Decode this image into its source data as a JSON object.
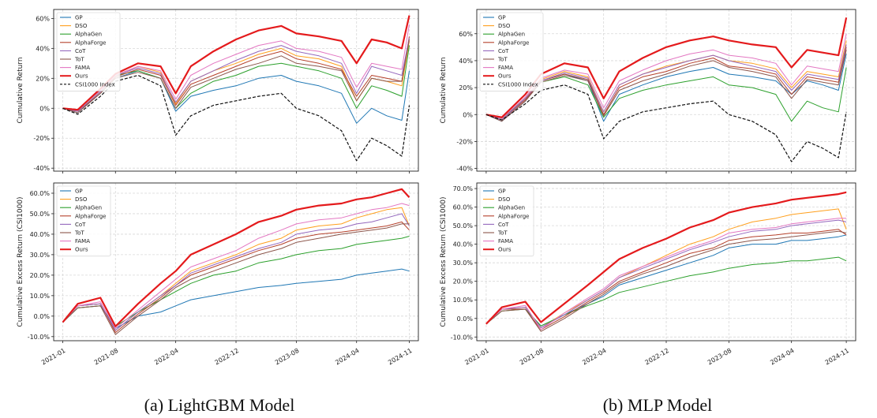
{
  "colors": {
    "GP": "#1f77b4",
    "DSO": "#ff9f1c",
    "AlphaGen": "#2ca02c",
    "AlphaForge": "#b5402a",
    "CoT": "#9467bd",
    "ToT": "#8c564b",
    "FAMA": "#e377c2",
    "Ours": "#e41a1c",
    "CSI1000 Index": "#111111"
  },
  "x_ticks": [
    "2021-01",
    "2021-08",
    "2022-04",
    "2022-12",
    "2023-08",
    "2024-04",
    "2024-11"
  ],
  "captions": [
    "(a) LightGBM Model",
    "(b) MLP Model"
  ],
  "chart_data": [
    {
      "type": "line",
      "panel": "a-top",
      "xlabel": "",
      "ylabel": "Cumulative Return",
      "ylim": [
        -42,
        66
      ],
      "yticks": [
        -40,
        -20,
        0,
        20,
        40,
        60
      ],
      "ytick_labels": [
        "-40%",
        "-20%",
        "0%",
        "20%",
        "40%",
        "60%"
      ],
      "legend": "top-left",
      "grid": true,
      "x": [
        "2021-01",
        "2021-03",
        "2021-06",
        "2021-08",
        "2021-11",
        "2022-02",
        "2022-04",
        "2022-06",
        "2022-09",
        "2022-12",
        "2023-03",
        "2023-06",
        "2023-08",
        "2023-11",
        "2024-02",
        "2024-04",
        "2024-06",
        "2024-08",
        "2024-10",
        "2024-11"
      ],
      "series": [
        {
          "name": "GP",
          "values": [
            0,
            -3,
            10,
            20,
            25,
            20,
            -2,
            8,
            12,
            15,
            20,
            22,
            18,
            15,
            10,
            -10,
            0,
            -5,
            -8,
            25
          ]
        },
        {
          "name": "DSO",
          "values": [
            0,
            -2,
            11,
            22,
            28,
            24,
            3,
            18,
            25,
            30,
            36,
            40,
            35,
            33,
            28,
            5,
            20,
            18,
            15,
            45
          ]
        },
        {
          "name": "AlphaGen",
          "values": [
            0,
            -1,
            12,
            22,
            25,
            20,
            0,
            10,
            18,
            22,
            28,
            30,
            28,
            25,
            20,
            0,
            15,
            12,
            8,
            42
          ]
        },
        {
          "name": "AlphaForge",
          "values": [
            0,
            -2,
            10,
            21,
            26,
            22,
            2,
            16,
            22,
            28,
            34,
            38,
            33,
            30,
            26,
            8,
            22,
            20,
            18,
            48
          ]
        },
        {
          "name": "CoT",
          "values": [
            0,
            -2,
            11,
            22,
            27,
            23,
            4,
            18,
            25,
            32,
            38,
            42,
            38,
            35,
            30,
            10,
            28,
            25,
            22,
            47
          ]
        },
        {
          "name": "ToT",
          "values": [
            0,
            -3,
            10,
            20,
            24,
            20,
            0,
            14,
            20,
            26,
            30,
            35,
            30,
            28,
            25,
            5,
            20,
            18,
            18,
            46
          ]
        },
        {
          "name": "FAMA",
          "values": [
            0,
            -1,
            12,
            22,
            28,
            25,
            6,
            22,
            30,
            36,
            42,
            45,
            40,
            38,
            34,
            14,
            30,
            28,
            26,
            56
          ]
        },
        {
          "name": "Ours",
          "values": [
            0,
            -1,
            13,
            23,
            30,
            28,
            10,
            28,
            38,
            46,
            52,
            55,
            50,
            48,
            45,
            30,
            46,
            44,
            40,
            62
          ]
        },
        {
          "name": "CSI1000 Index",
          "values": [
            0,
            -4,
            8,
            18,
            22,
            15,
            -18,
            -5,
            2,
            5,
            8,
            10,
            0,
            -5,
            -15,
            -35,
            -20,
            -25,
            -32,
            2
          ]
        }
      ]
    },
    {
      "type": "line",
      "panel": "a-bottom",
      "xlabel": "",
      "ylabel": "Cumulative Excess Return (CSI1000)",
      "ylim": [
        -12,
        65
      ],
      "yticks": [
        -10,
        0,
        10,
        20,
        30,
        40,
        50,
        60
      ],
      "ytick_labels": [
        "-10.0%",
        "0.0%",
        "10.0%",
        "20.0%",
        "30.0%",
        "40.0%",
        "50.0%",
        "60.0%"
      ],
      "legend": "top-left",
      "grid": true,
      "x": [
        "2021-01",
        "2021-03",
        "2021-06",
        "2021-08",
        "2021-11",
        "2022-02",
        "2022-04",
        "2022-06",
        "2022-09",
        "2022-12",
        "2023-03",
        "2023-06",
        "2023-08",
        "2023-11",
        "2024-02",
        "2024-04",
        "2024-06",
        "2024-08",
        "2024-10",
        "2024-11"
      ],
      "series": [
        {
          "name": "GP",
          "values": [
            -3,
            4,
            5,
            -6,
            0,
            2,
            5,
            8,
            10,
            12,
            14,
            15,
            16,
            17,
            18,
            20,
            21,
            22,
            23,
            22
          ]
        },
        {
          "name": "DSO",
          "values": [
            -3,
            5,
            6,
            -7,
            2,
            10,
            16,
            22,
            26,
            30,
            35,
            38,
            42,
            44,
            45,
            48,
            50,
            52,
            53,
            44
          ]
        },
        {
          "name": "AlphaGen",
          "values": [
            -3,
            4,
            5,
            -5,
            2,
            8,
            12,
            16,
            20,
            22,
            26,
            28,
            30,
            32,
            33,
            35,
            36,
            37,
            38,
            39
          ]
        },
        {
          "name": "AlphaForge",
          "values": [
            -3,
            5,
            6,
            -8,
            1,
            9,
            15,
            20,
            24,
            28,
            32,
            35,
            38,
            40,
            41,
            42,
            43,
            44,
            46,
            42
          ]
        },
        {
          "name": "CoT",
          "values": [
            -3,
            5,
            6,
            -7,
            2,
            10,
            15,
            21,
            25,
            29,
            33,
            36,
            40,
            42,
            43,
            45,
            46,
            48,
            50,
            44
          ]
        },
        {
          "name": "ToT",
          "values": [
            -3,
            4,
            5,
            -9,
            0,
            8,
            14,
            18,
            22,
            26,
            30,
            33,
            36,
            38,
            40,
            41,
            42,
            43,
            45,
            45
          ]
        },
        {
          "name": "FAMA",
          "values": [
            -3,
            5,
            7,
            -6,
            3,
            12,
            18,
            24,
            28,
            32,
            38,
            42,
            45,
            47,
            48,
            50,
            52,
            53,
            55,
            54
          ]
        },
        {
          "name": "Ours",
          "values": [
            -3,
            6,
            9,
            -5,
            6,
            16,
            22,
            30,
            35,
            40,
            46,
            49,
            52,
            54,
            55,
            57,
            58,
            60,
            62,
            58
          ]
        }
      ]
    },
    {
      "type": "line",
      "panel": "b-top",
      "xlabel": "",
      "ylabel": "Cumulative Return",
      "ylim": [
        -42,
        78
      ],
      "yticks": [
        -40,
        -20,
        0,
        20,
        40,
        60
      ],
      "ytick_labels": [
        "-40%",
        "-20%",
        "0%",
        "20%",
        "40%",
        "60%"
      ],
      "legend": "top-left",
      "grid": true,
      "x": [
        "2021-01",
        "2021-03",
        "2021-06",
        "2021-08",
        "2021-11",
        "2022-02",
        "2022-04",
        "2022-06",
        "2022-09",
        "2022-12",
        "2023-03",
        "2023-06",
        "2023-08",
        "2023-11",
        "2024-02",
        "2024-04",
        "2024-06",
        "2024-08",
        "2024-10",
        "2024-11"
      ],
      "series": [
        {
          "name": "GP",
          "values": [
            0,
            -5,
            10,
            25,
            30,
            25,
            -5,
            15,
            22,
            28,
            32,
            35,
            30,
            28,
            25,
            15,
            25,
            22,
            18,
            45
          ]
        },
        {
          "name": "DSO",
          "values": [
            0,
            -4,
            12,
            26,
            32,
            28,
            2,
            22,
            30,
            36,
            40,
            44,
            40,
            38,
            34,
            20,
            32,
            30,
            28,
            55
          ]
        },
        {
          "name": "AlphaGen",
          "values": [
            0,
            -3,
            12,
            24,
            28,
            22,
            -2,
            12,
            18,
            22,
            25,
            28,
            22,
            20,
            15,
            -5,
            10,
            5,
            2,
            35
          ]
        },
        {
          "name": "AlphaForge",
          "values": [
            0,
            -4,
            11,
            25,
            30,
            26,
            0,
            20,
            28,
            32,
            38,
            42,
            36,
            34,
            30,
            15,
            28,
            26,
            24,
            50
          ]
        },
        {
          "name": "CoT",
          "values": [
            0,
            -4,
            12,
            25,
            31,
            27,
            2,
            22,
            30,
            35,
            40,
            44,
            40,
            36,
            32,
            18,
            30,
            28,
            26,
            52
          ]
        },
        {
          "name": "ToT",
          "values": [
            0,
            -5,
            10,
            24,
            29,
            25,
            -1,
            18,
            25,
            30,
            36,
            40,
            35,
            32,
            28,
            12,
            26,
            24,
            22,
            48
          ]
        },
        {
          "name": "FAMA",
          "values": [
            0,
            -3,
            13,
            27,
            33,
            30,
            5,
            25,
            33,
            40,
            45,
            48,
            44,
            42,
            38,
            22,
            36,
            34,
            32,
            60
          ]
        },
        {
          "name": "Ours",
          "values": [
            0,
            -2,
            15,
            30,
            38,
            35,
            12,
            32,
            42,
            50,
            55,
            58,
            55,
            52,
            50,
            35,
            48,
            46,
            44,
            72
          ]
        },
        {
          "name": "CSI1000 Index",
          "values": [
            0,
            -4,
            8,
            18,
            22,
            15,
            -18,
            -5,
            2,
            5,
            8,
            10,
            0,
            -5,
            -15,
            -35,
            -20,
            -25,
            -32,
            2
          ]
        }
      ]
    },
    {
      "type": "line",
      "panel": "b-bottom",
      "xlabel": "",
      "ylabel": "Cumulative Excess Return (CSI1000)",
      "ylim": [
        -12,
        73
      ],
      "yticks": [
        -10,
        0,
        10,
        20,
        30,
        40,
        50,
        60,
        70
      ],
      "ytick_labels": [
        "-10.0%",
        "0.0%",
        "10.0%",
        "20.0%",
        "30.0%",
        "40.0%",
        "50.0%",
        "60.0%",
        "70.0%"
      ],
      "legend": "top-left",
      "grid": true,
      "x": [
        "2021-01",
        "2021-03",
        "2021-06",
        "2021-08",
        "2021-11",
        "2022-02",
        "2022-04",
        "2022-06",
        "2022-09",
        "2022-12",
        "2023-03",
        "2023-06",
        "2023-08",
        "2023-11",
        "2024-02",
        "2024-04",
        "2024-06",
        "2024-08",
        "2024-10",
        "2024-11"
      ],
      "series": [
        {
          "name": "GP",
          "values": [
            -3,
            5,
            5,
            -4,
            2,
            8,
            12,
            18,
            22,
            26,
            30,
            34,
            38,
            40,
            40,
            42,
            42,
            43,
            44,
            45
          ]
        },
        {
          "name": "DSO",
          "values": [
            -3,
            5,
            6,
            -5,
            3,
            10,
            15,
            22,
            28,
            34,
            40,
            44,
            48,
            52,
            54,
            56,
            57,
            58,
            59,
            48
          ]
        },
        {
          "name": "AlphaGen",
          "values": [
            -3,
            4,
            5,
            -4,
            2,
            7,
            10,
            14,
            17,
            20,
            23,
            25,
            27,
            29,
            30,
            31,
            31,
            32,
            33,
            31
          ]
        },
        {
          "name": "AlphaForge",
          "values": [
            -3,
            5,
            5,
            -6,
            1,
            9,
            14,
            20,
            25,
            30,
            35,
            38,
            42,
            44,
            45,
            46,
            46,
            47,
            48,
            45
          ]
        },
        {
          "name": "CoT",
          "values": [
            -3,
            5,
            6,
            -5,
            2,
            10,
            15,
            22,
            27,
            32,
            37,
            41,
            44,
            47,
            48,
            50,
            51,
            52,
            53,
            52
          ]
        },
        {
          "name": "ToT",
          "values": [
            -3,
            4,
            5,
            -7,
            0,
            8,
            13,
            19,
            24,
            28,
            33,
            37,
            40,
            42,
            43,
            44,
            45,
            46,
            47,
            46
          ]
        },
        {
          "name": "FAMA",
          "values": [
            -3,
            5,
            7,
            -6,
            3,
            11,
            16,
            23,
            28,
            33,
            38,
            42,
            46,
            48,
            49,
            51,
            52,
            53,
            54,
            54
          ]
        },
        {
          "name": "Ours",
          "values": [
            -3,
            6,
            9,
            -2,
            8,
            18,
            25,
            32,
            38,
            43,
            49,
            53,
            57,
            60,
            62,
            64,
            65,
            66,
            67,
            68
          ]
        }
      ]
    }
  ]
}
